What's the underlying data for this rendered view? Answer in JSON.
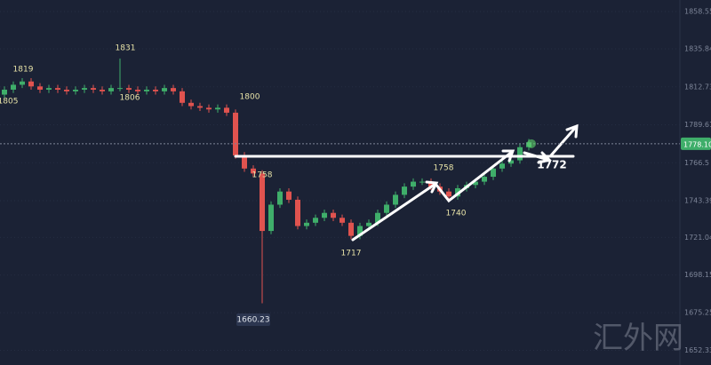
{
  "chart_data": {
    "type": "candlestick",
    "open": [
      1808,
      1811,
      1814,
      1816,
      1813,
      1811,
      1812,
      1811,
      1810,
      1811,
      1812,
      1811,
      1810,
      1812,
      1812,
      1811,
      1810,
      1811,
      1810,
      1812,
      1810,
      1803,
      1801,
      1800,
      1799,
      1800,
      1797,
      1771,
      1763,
      1760,
      1725,
      1741,
      1749,
      1744,
      1728,
      1730,
      1733,
      1736,
      1733,
      1730,
      1722,
      1728,
      1730,
      1736,
      1741,
      1747,
      1752,
      1755,
      1755,
      1752,
      1749,
      1746,
      1751,
      1753,
      1755,
      1758,
      1763,
      1766,
      1768,
      1776
    ],
    "high": [
      1813,
      1816,
      1818,
      1818,
      1815,
      1814,
      1814,
      1813,
      1813,
      1814,
      1814,
      1813,
      1814,
      1830,
      1814,
      1813,
      1813,
      1813,
      1814,
      1814,
      1812,
      1805,
      1803,
      1802,
      1802,
      1802,
      1799,
      1773,
      1765,
      1762,
      1743,
      1751,
      1751,
      1746,
      1732,
      1735,
      1738,
      1738,
      1735,
      1732,
      1730,
      1732,
      1738,
      1743,
      1749,
      1754,
      1757,
      1757,
      1757,
      1754,
      1751,
      1753,
      1755,
      1757,
      1760,
      1765,
      1768,
      1770,
      1778,
      1781
    ],
    "low": [
      1806,
      1809,
      1812,
      1811,
      1809,
      1809,
      1809,
      1808,
      1808,
      1809,
      1809,
      1808,
      1808,
      1810,
      1809,
      1808,
      1808,
      1808,
      1808,
      1808,
      1801,
      1799,
      1798,
      1797,
      1797,
      1795,
      1769,
      1761,
      1758,
      1681,
      1723,
      1739,
      1742,
      1726,
      1726,
      1728,
      1731,
      1731,
      1728,
      1720,
      1720,
      1726,
      1728,
      1734,
      1739,
      1745,
      1750,
      1753,
      1750,
      1747,
      1744,
      1744,
      1749,
      1751,
      1753,
      1756,
      1761,
      1764,
      1766,
      1774
    ],
    "close": [
      1811,
      1814,
      1816,
      1813,
      1811,
      1812,
      1811,
      1810,
      1811,
      1812,
      1811,
      1810,
      1812,
      1812,
      1811,
      1810,
      1811,
      1810,
      1812,
      1810,
      1803,
      1801,
      1800,
      1799,
      1800,
      1797,
      1771,
      1763,
      1760,
      1725,
      1741,
      1749,
      1744,
      1728,
      1730,
      1733,
      1736,
      1733,
      1730,
      1722,
      1728,
      1730,
      1736,
      1741,
      1747,
      1752,
      1755,
      1755,
      1752,
      1749,
      1746,
      1751,
      1753,
      1755,
      1758,
      1763,
      1766,
      1768,
      1776,
      1779
    ],
    "up_color": "#3fae6a",
    "down_color": "#e0534f",
    "ylim": [
      1643.4,
      1865.6
    ],
    "yticks": [
      1858.55,
      1835.84,
      1812.73,
      1789.61,
      1766.5,
      1743.39,
      1721.04,
      1698.15,
      1675.25,
      1652.33
    ],
    "grid": true,
    "current_price": {
      "value": 1778.1,
      "label": "1778.10"
    },
    "annotations": [
      "1819",
      "1805",
      "1831",
      "1806",
      "1800",
      "1758",
      "1717",
      "1758",
      "1740",
      "1660.23",
      "1772"
    ],
    "watermark": "汇外网"
  }
}
